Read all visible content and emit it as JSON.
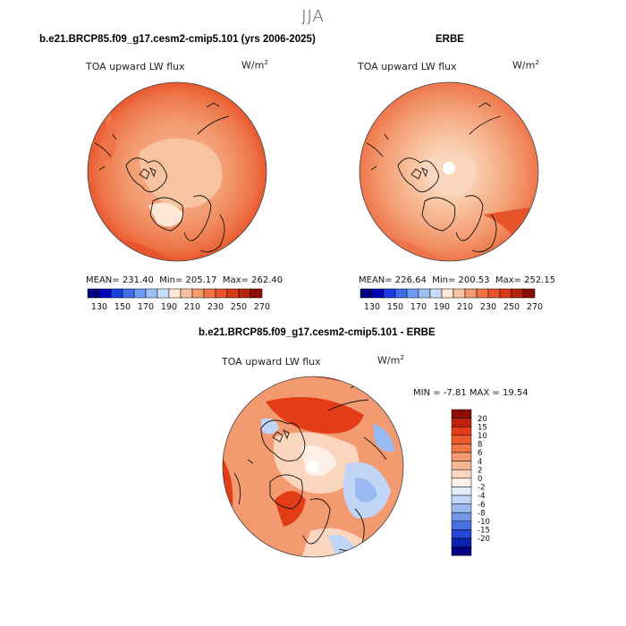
{
  "season": "JJA",
  "panels": [
    {
      "title": "b.e21.BRCP85.f09_g17.cesm2-cmip5.101 (yrs 2006-2025)",
      "variable": "TOA upward LW flux",
      "units_base": "W/m",
      "units_exp": "2",
      "mean_label": "MEAN=",
      "mean": "231.40",
      "min_label": "Min=",
      "min": "205.17",
      "max_label": "Max=",
      "max": "262.40"
    },
    {
      "title": "ERBE",
      "variable": "TOA upward LW flux",
      "units_base": "W/m",
      "units_exp": "2",
      "mean_label": "MEAN=",
      "mean": "226.64",
      "min_label": "Min=",
      "min": "200.53",
      "max_label": "Max=",
      "max": "252.15"
    }
  ],
  "abs_colorbar": {
    "tick_labels": [
      "130",
      "150",
      "170",
      "190",
      "210",
      "230",
      "250",
      "270"
    ],
    "colors": [
      "#000080",
      "#0000b8",
      "#1a3ce0",
      "#3f6fe8",
      "#6b9af0",
      "#9cc0f5",
      "#c9dcf9",
      "#fde7d6",
      "#f8c3a0",
      "#f39a70",
      "#ee7448",
      "#e9552b",
      "#d8391a",
      "#b82410",
      "#8b0d06"
    ]
  },
  "diff_panel": {
    "title": "b.e21.BRCP85.f09_g17.cesm2-cmip5.101 - ERBE",
    "variable": "TOA upward LW flux",
    "units_base": "W/m",
    "units_exp": "2",
    "min_label": "MIN =",
    "min": "-7.81",
    "max_label": "MAX =",
    "max": "19.54"
  },
  "diff_colorbar": {
    "tick_labels": [
      "20",
      "15",
      "10",
      "8",
      "6",
      "4",
      "2",
      "0",
      "-2",
      "-4",
      "-6",
      "-8",
      "-10",
      "-15",
      "-20"
    ],
    "colors": [
      "#8b0d06",
      "#c2200e",
      "#e23d17",
      "#ec5a2a",
      "#f07746",
      "#f39a70",
      "#f6b894",
      "#fad6bf",
      "#fdf0e6",
      "#e3ecfb",
      "#c1d6f6",
      "#9ab9f1",
      "#7297ea",
      "#4a6fe2",
      "#2547d4",
      "#0a23b0",
      "#000080"
    ]
  }
}
